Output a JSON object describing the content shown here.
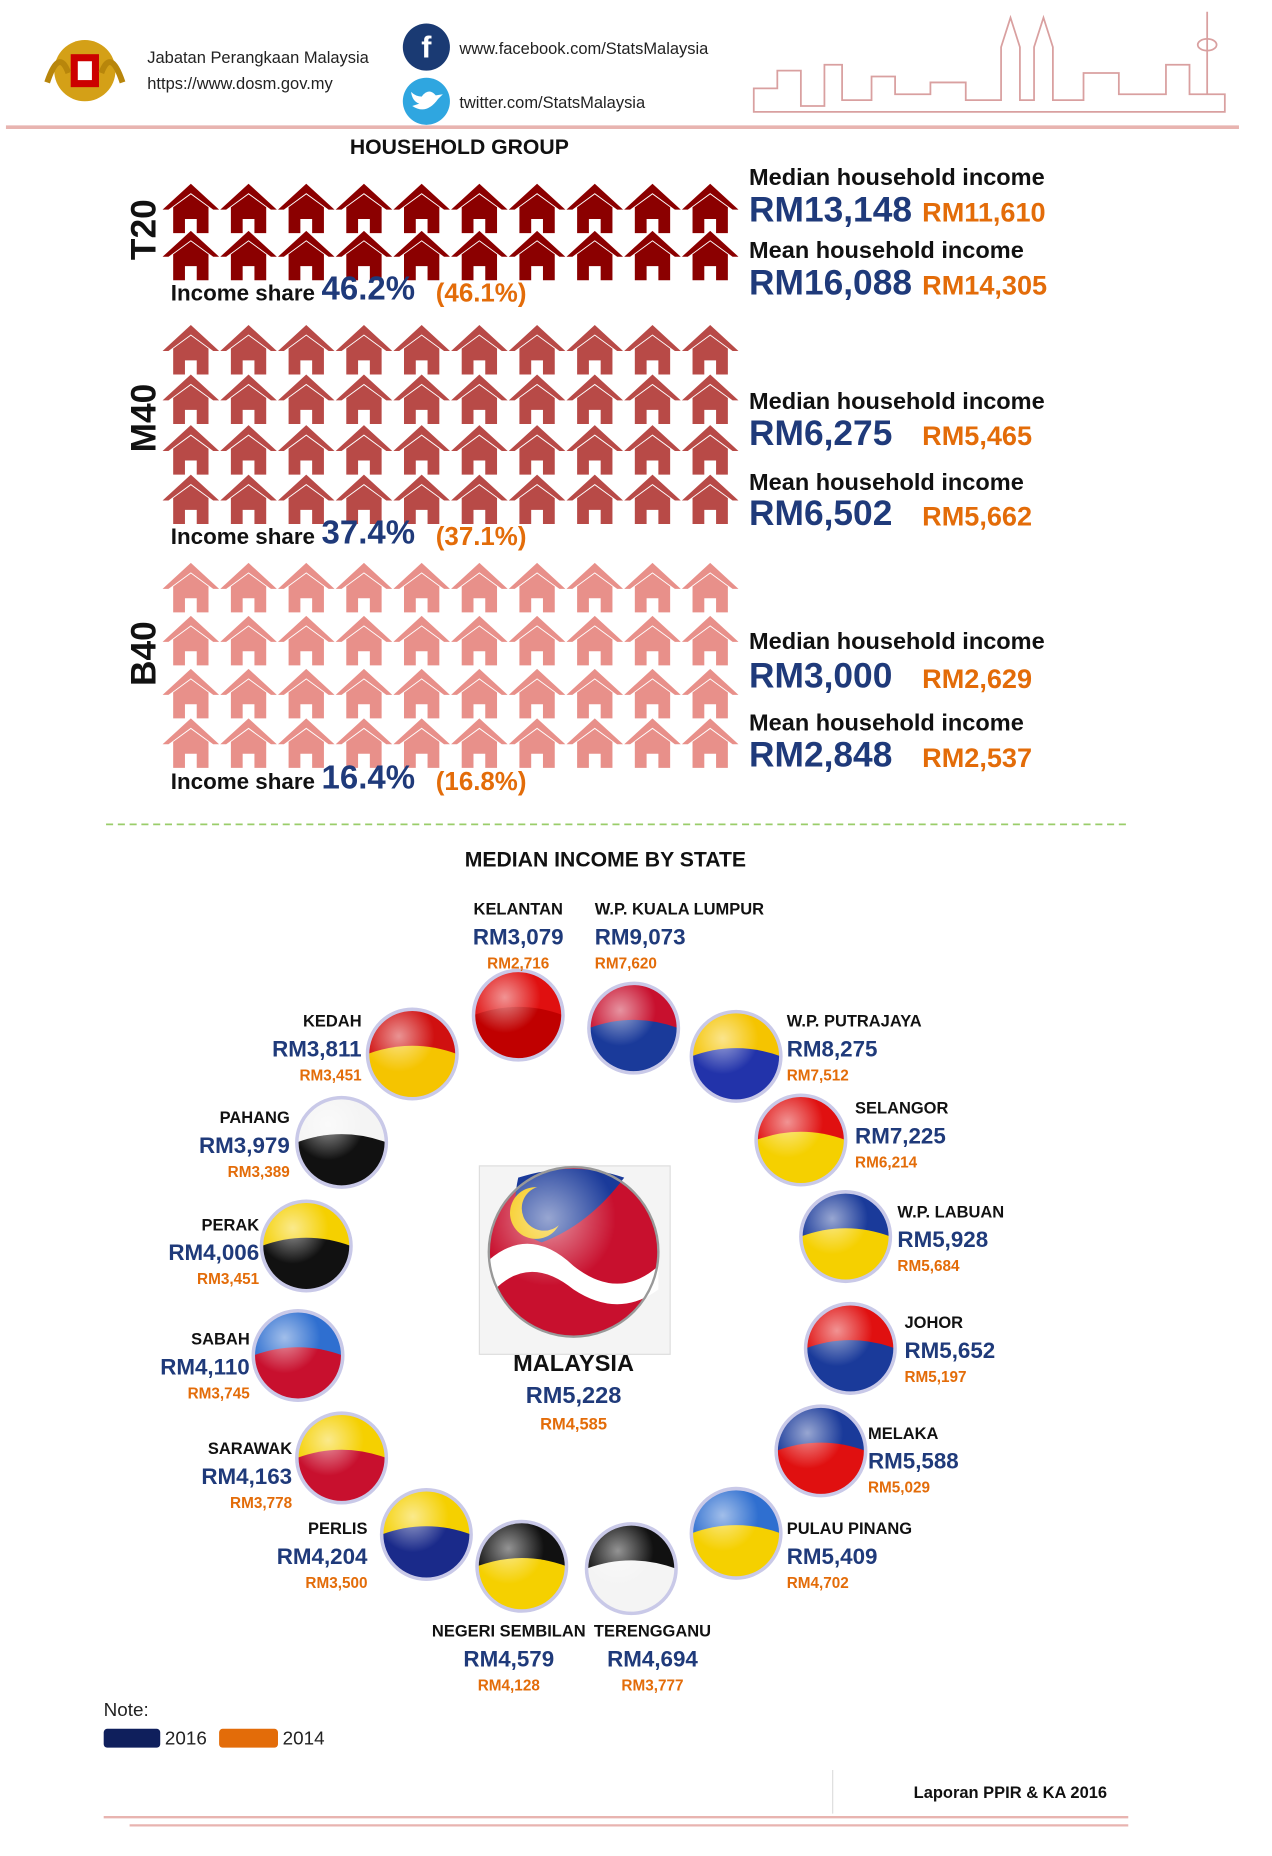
{
  "header": {
    "org_name": "Jabatan Perangkaan Malaysia",
    "org_url": "https://www.dosm.gov.my",
    "facebook": "www.facebook.com/StatsMalaysia",
    "twitter": "twitter.com/StatsMalaysia"
  },
  "household_group": {
    "title": "HOUSEHOLD GROUP",
    "groups": [
      {
        "label": "T20",
        "median_label": "Median household income",
        "median_2016": "RM13,148",
        "median_2014": "RM11,610",
        "mean_label": "Mean household income",
        "mean_2016": "RM16,088",
        "mean_2014": "RM14,305",
        "share_label": "Income share",
        "share_2016": "46.2%",
        "share_2014": "(46.1%)"
      },
      {
        "label": "M40",
        "median_label": "Median household income",
        "median_2016": "RM6,275",
        "median_2014": "RM5,465",
        "mean_label": "Mean household income",
        "mean_2016": "RM6,502",
        "mean_2014": "RM5,662",
        "share_label": "Income share",
        "share_2016": "37.4%",
        "share_2014": "(37.1%)"
      },
      {
        "label": "B40",
        "median_label": "Median household income",
        "median_2016": "RM3,000",
        "median_2014": "RM2,629",
        "mean_label": "Mean household income",
        "mean_2016": "RM2,848",
        "mean_2014": "RM2,537",
        "share_label": "Income share",
        "share_2016": "16.4%",
        "share_2014": "(16.8%)"
      }
    ]
  },
  "states_section": {
    "title": "MEDIAN INCOME BY STATE",
    "states": [
      {
        "name": "KELANTAN",
        "value_2016": "RM3,079",
        "value_2014": "RM2,716"
      },
      {
        "name": "W.P. KUALA LUMPUR",
        "value_2016": "RM9,073",
        "value_2014": "RM7,620"
      },
      {
        "name": "W.P. PUTRAJAYA",
        "value_2016": "RM8,275",
        "value_2014": "RM7,512"
      },
      {
        "name": "SELANGOR",
        "value_2016": "RM7,225",
        "value_2014": "RM6,214"
      },
      {
        "name": "W.P. LABUAN",
        "value_2016": "RM5,928",
        "value_2014": "RM5,684"
      },
      {
        "name": "JOHOR",
        "value_2016": "RM5,652",
        "value_2014": "RM5,197"
      },
      {
        "name": "MELAKA",
        "value_2016": "RM5,588",
        "value_2014": "RM5,029"
      },
      {
        "name": "PULAU PINANG",
        "value_2016": "RM5,409",
        "value_2014": "RM4,702"
      },
      {
        "name": "TERENGGANU",
        "value_2016": "RM4,694",
        "value_2014": "RM3,777"
      },
      {
        "name": "NEGERI SEMBILAN",
        "value_2016": "RM4,579",
        "value_2014": "RM4,128"
      },
      {
        "name": "PERLIS",
        "value_2016": "RM4,204",
        "value_2014": "RM3,500"
      },
      {
        "name": "SARAWAK",
        "value_2016": "RM4,163",
        "value_2014": "RM3,778"
      },
      {
        "name": "SABAH",
        "value_2016": "RM4,110",
        "value_2014": "RM3,745"
      },
      {
        "name": "PERAK",
        "value_2016": "RM4,006",
        "value_2014": "RM3,451"
      },
      {
        "name": "PAHANG",
        "value_2016": "RM3,979",
        "value_2014": "RM3,389"
      },
      {
        "name": "KEDAH",
        "value_2016": "RM3,811",
        "value_2014": "RM3,451"
      }
    ],
    "national": {
      "name": "MALAYSIA",
      "value_2016": "RM5,228",
      "value_2014": "RM4,585"
    }
  },
  "legend": {
    "title": "Note:",
    "items": [
      "2016",
      "2014"
    ]
  },
  "footer": {
    "text": "Laporan PPIR & KA 2016"
  }
}
